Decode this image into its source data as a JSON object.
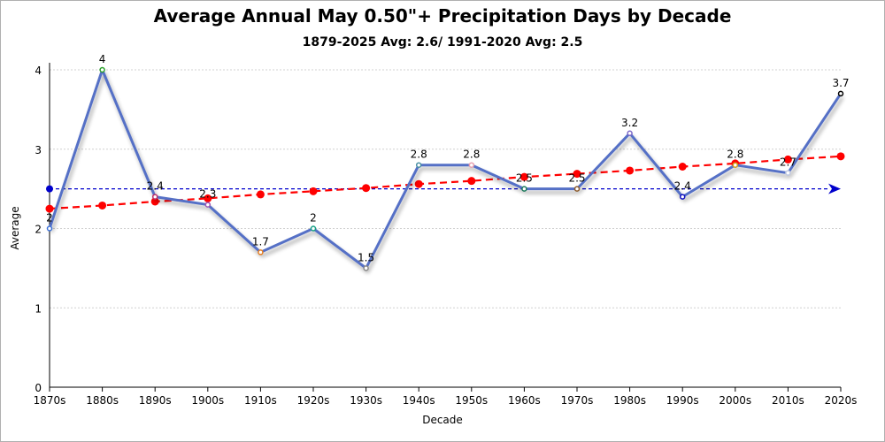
{
  "chart_data": {
    "type": "line",
    "title": "Average Annual May 0.50\"+ Precipitation Days by Decade",
    "subtitle": "1879-2025 Avg: 2.6/ 1991-2020 Avg: 2.5",
    "xlabel": "Decade",
    "ylabel": "Average",
    "ylim": [
      0,
      4
    ],
    "yticks": [
      "0",
      "1",
      "2",
      "3",
      "4"
    ],
    "grid": true,
    "categories": [
      "1870s",
      "1880s",
      "1890s",
      "1900s",
      "1910s",
      "1920s",
      "1930s",
      "1940s",
      "1950s",
      "1960s",
      "1970s",
      "1980s",
      "1990s",
      "2000s",
      "2010s",
      "2020s"
    ],
    "series": [
      {
        "kind": "data",
        "values": [
          2,
          4,
          2.4,
          2.3,
          1.7,
          2,
          1.5,
          2.8,
          2.8,
          2.5,
          2.5,
          3.2,
          2.4,
          2.8,
          2.7,
          3.7
        ],
        "labels": [
          "2",
          "4",
          "2.4",
          "2.3",
          "1.7",
          "2",
          "1.5",
          "2.8",
          "2.8",
          "2.5",
          "2.5",
          "3.2",
          "2.4",
          "2.8",
          "2.7",
          "3.7"
        ],
        "color": "#5470c6",
        "marker_colors": [
          "#3b6fd6",
          "#2ca02c",
          "#c0306a",
          "#9b59b6",
          "#e67e22",
          "#16a085",
          "#888888",
          "#4a90a4",
          "#e8a0b0",
          "#1a7a5a",
          "#8b5a2b",
          "#7b68c8",
          "#1010c0",
          "#d4a017",
          "#c0c8e0",
          "#000000"
        ]
      },
      {
        "kind": "trend",
        "values": [
          2.25,
          2.29,
          2.34,
          2.38,
          2.43,
          2.47,
          2.51,
          2.56,
          2.6,
          2.65,
          2.69,
          2.73,
          2.78,
          2.82,
          2.87,
          2.91
        ],
        "color": "#ff0000"
      },
      {
        "kind": "reference",
        "value": 2.5,
        "color": "#0000cc"
      }
    ]
  }
}
